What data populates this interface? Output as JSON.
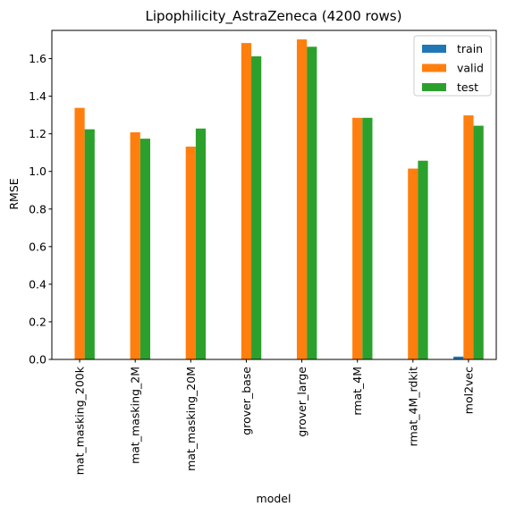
{
  "chart_data": {
    "type": "bar",
    "title": "Lipophilicity_AstraZeneca (4200 rows)",
    "xlabel": "model",
    "ylabel": "RMSE",
    "ylim": [
      0,
      1.75
    ],
    "yticks": [
      "0.0",
      "0.2",
      "0.4",
      "0.6",
      "0.8",
      "1.0",
      "1.2",
      "1.4",
      "1.6"
    ],
    "grid": false,
    "legend_position": "top-right",
    "categories": [
      "mat_masking_200k",
      "mat_masking_2M",
      "mat_masking_20M",
      "grover_base",
      "grover_large",
      "rmat_4M",
      "rmat_4M_rdkit",
      "mol2vec"
    ],
    "series": [
      {
        "name": "train",
        "color": "#1f77b4",
        "values": [
          0,
          0,
          0,
          0,
          0,
          0,
          0,
          0.015
        ]
      },
      {
        "name": "valid",
        "color": "#ff7f0e",
        "values": [
          1.338,
          1.208,
          1.132,
          1.683,
          1.702,
          1.285,
          1.015,
          1.298
        ]
      },
      {
        "name": "test",
        "color": "#2ca02c",
        "values": [
          1.224,
          1.174,
          1.228,
          1.612,
          1.663,
          1.285,
          1.057,
          1.243
        ]
      }
    ]
  }
}
